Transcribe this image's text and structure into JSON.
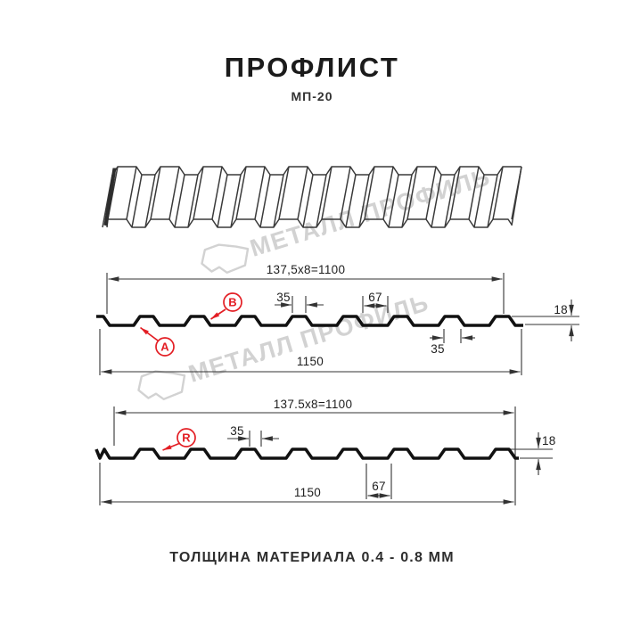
{
  "header": {
    "title": "ПРОФЛИСТ",
    "subtitle": "МП-20"
  },
  "footer": {
    "note": "ТОЛЩИНА МАТЕРИАЛА 0.4 - 0.8 ММ"
  },
  "watermark": {
    "text": "МЕТАЛЛ ПРОФИЛЬ"
  },
  "colors": {
    "accent_red": "#e31e24",
    "line": "#1a1a1a",
    "watermark_gray": "#d2d2d2"
  },
  "section_top": {
    "dim_working_width": "137,5x8=1100",
    "dim_rib_top": "35",
    "dim_valley": "67",
    "dim_height": "18",
    "dim_rib_base": "35",
    "dim_total_width": "1150",
    "label_a": "A",
    "label_b": "B"
  },
  "section_bottom": {
    "dim_working_width": "137.5x8=1100",
    "dim_rib_top": "35",
    "dim_valley": "67",
    "dim_height": "18",
    "dim_total_width": "1150",
    "label_r": "R"
  }
}
